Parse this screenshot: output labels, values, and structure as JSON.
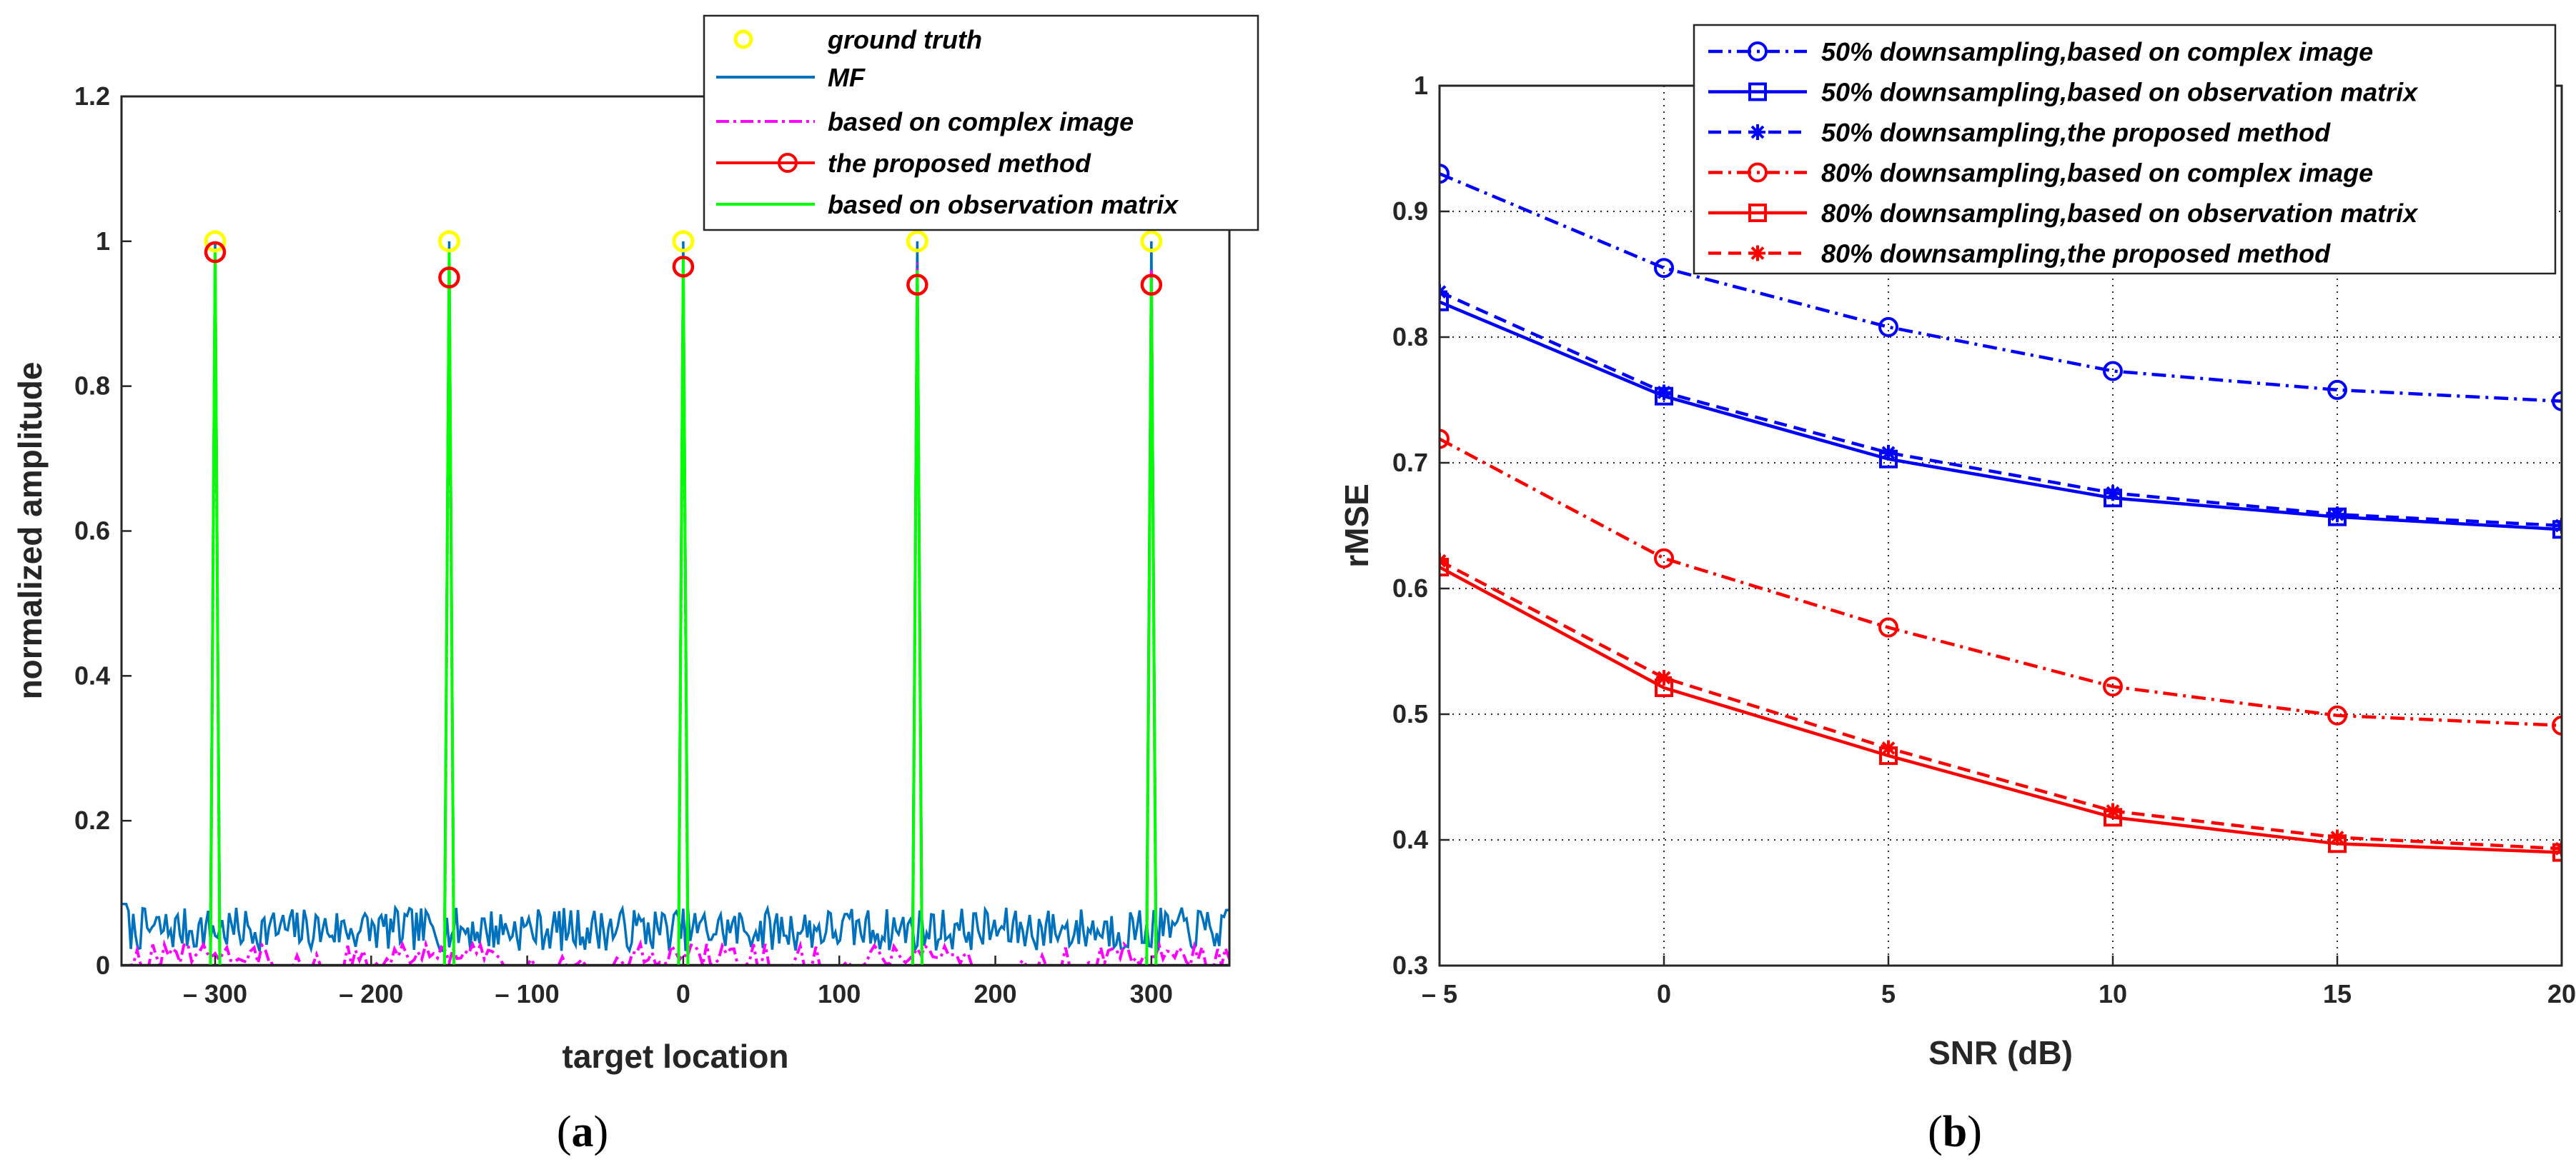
{
  "chart_data": [
    {
      "id": "a",
      "type": "line",
      "caption": {
        "open": "(",
        "letter": "a",
        "close": ")"
      },
      "xlabel": "target location",
      "ylabel": "normalized amplitude",
      "xlim": [
        -360,
        350
      ],
      "ylim": [
        0,
        1.2
      ],
      "xticks": [
        -300,
        -200,
        -100,
        0,
        100,
        200,
        300
      ],
      "xtick_labels": [
        "– 300",
        "– 200",
        "– 100",
        "0",
        "100",
        "200",
        "300"
      ],
      "yticks": [
        0,
        0.2,
        0.4,
        0.6,
        0.8,
        1,
        1.2
      ],
      "ytick_labels": [
        "0",
        "0.2",
        "0.4",
        "0.6",
        "0.8",
        "1",
        "1.2"
      ],
      "grid": false,
      "legend_position": "top-right",
      "targets_x": [
        -300,
        -150,
        0,
        150,
        300
      ],
      "series": [
        {
          "name": "ground truth",
          "style": "markers",
          "marker": "circle",
          "color": "#ffff00",
          "values": [
            1.0,
            1.0,
            1.0,
            1.0,
            1.0
          ]
        },
        {
          "name": "MF",
          "style": "solid",
          "color": "#0072bd",
          "peaks": [
            1.0,
            1.0,
            1.0,
            1.0,
            1.0
          ],
          "noise_floor": [
            0.02,
            0.08
          ]
        },
        {
          "name": "based on complex image",
          "style": "dashdot",
          "color": "#ff00ff",
          "peaks": [
            0.98,
            0.97,
            0.96,
            0.97,
            0.96
          ],
          "noise_floor": [
            0.0,
            0.03
          ]
        },
        {
          "name": "the proposed method",
          "style": "solid-marker",
          "marker": "circle",
          "color": "#ff0000",
          "values": [
            0.985,
            0.95,
            0.965,
            0.94,
            0.94
          ]
        },
        {
          "name": "based on observation matrix",
          "style": "solid",
          "color": "#00ff00",
          "peaks": [
            0.99,
            0.99,
            0.98,
            0.96,
            0.95
          ]
        }
      ]
    },
    {
      "id": "b",
      "type": "line",
      "caption": {
        "open": "(",
        "letter": "b",
        "close": ")"
      },
      "xlabel": "SNR (dB)",
      "ylabel": "rMSE",
      "xlim": [
        -5,
        20
      ],
      "ylim": [
        0.3,
        1.0
      ],
      "xticks": [
        -5,
        0,
        5,
        10,
        15,
        20
      ],
      "xtick_labels": [
        "– 5",
        "0",
        "5",
        "10",
        "15",
        "20"
      ],
      "yticks": [
        0.3,
        0.4,
        0.5,
        0.6,
        0.7,
        0.8,
        0.9,
        1.0
      ],
      "ytick_labels": [
        "0.3",
        "0.4",
        "0.5",
        "0.6",
        "0.7",
        "0.8",
        "0.9",
        "1"
      ],
      "grid": true,
      "legend_position": "top-right",
      "x": [
        -5,
        0,
        5,
        10,
        15,
        20
      ],
      "series": [
        {
          "name": "50% downsampling,based on complex image",
          "color": "#0000ff",
          "line": "dashdot",
          "marker": "circle",
          "values": [
            0.93,
            0.855,
            0.808,
            0.773,
            0.758,
            0.749
          ]
        },
        {
          "name": "50% downsampling,based on observation matrix",
          "color": "#0000ff",
          "line": "solid",
          "marker": "square",
          "values": [
            0.828,
            0.753,
            0.703,
            0.672,
            0.657,
            0.647
          ]
        },
        {
          "name": "50% downsampling,the proposed method",
          "color": "#0000ff",
          "line": "dashed",
          "marker": "star",
          "values": [
            0.836,
            0.756,
            0.708,
            0.676,
            0.659,
            0.65
          ]
        },
        {
          "name": "80% downsampling,based on complex image",
          "color": "#ff0000",
          "line": "dashdot",
          "marker": "circle",
          "values": [
            0.719,
            0.624,
            0.569,
            0.522,
            0.499,
            0.491
          ]
        },
        {
          "name": "80% downsampling,based on observation matrix",
          "color": "#ff0000",
          "line": "solid",
          "marker": "square",
          "values": [
            0.617,
            0.521,
            0.467,
            0.418,
            0.397,
            0.39
          ]
        },
        {
          "name": "80% downsampling,the proposed method",
          "color": "#ff0000",
          "line": "dashed",
          "marker": "star",
          "values": [
            0.622,
            0.529,
            0.473,
            0.423,
            0.402,
            0.393
          ]
        }
      ]
    }
  ]
}
